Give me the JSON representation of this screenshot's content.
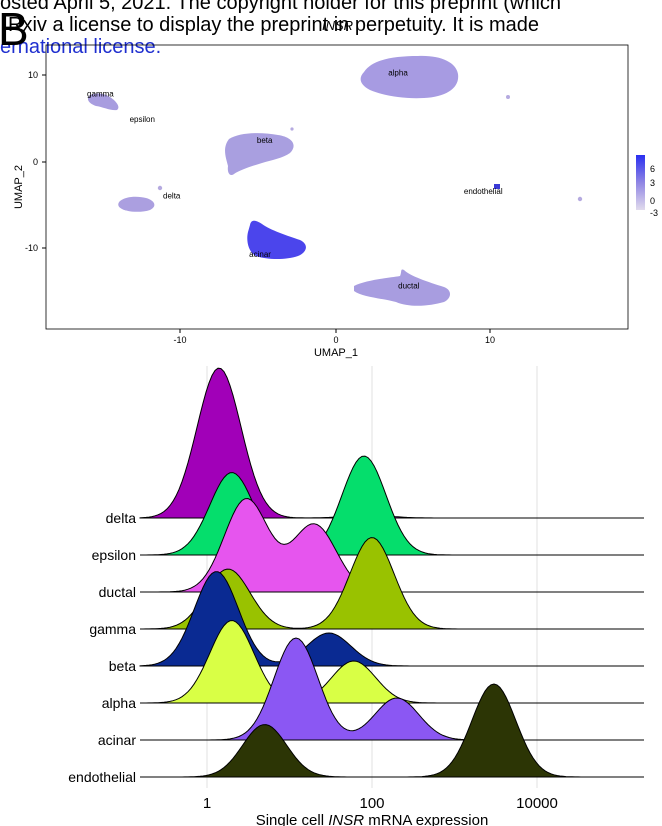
{
  "header": {
    "line1": "osted April 5, 2021. The copyright holder for this preprint (which",
    "line2": "Rxiv a license to display the preprint in perpetuity. It is made",
    "line3": "ernational license.",
    "panel_label": "B"
  },
  "umap": {
    "title": "INSR",
    "xlabel": "UMAP_1",
    "ylabel": "UMAP_2",
    "xticks": [
      "-10",
      "0",
      "10"
    ],
    "yticks": [
      "10",
      "0",
      "-10"
    ],
    "colorbar_ticks": [
      "6",
      "3",
      "0",
      "-3"
    ],
    "colors": {
      "low": "#d9d2ea",
      "mid": "#8f85e4",
      "high": "#2a2ff0"
    },
    "clusters": [
      {
        "label": "alpha",
        "x": 4.0,
        "y": 10.0
      },
      {
        "label": "gamma",
        "x": -15.2,
        "y": 7.6
      },
      {
        "label": "epsilon",
        "x": -12.5,
        "y": 4.6
      },
      {
        "label": "beta",
        "x": -4.6,
        "y": 2.2
      },
      {
        "label": "delta",
        "x": -10.6,
        "y": -4.2
      },
      {
        "label": "endothelial",
        "x": 9.5,
        "y": -3.7
      },
      {
        "label": "acinar",
        "x": -4.9,
        "y": -11.0
      },
      {
        "label": "ductal",
        "x": 4.7,
        "y": -14.6
      }
    ]
  },
  "chart_data": {
    "type": "area",
    "title": "",
    "xlabel": "Single cell INSR mRNA expression",
    "xlabel_parts": [
      "Single cell ",
      "INSR",
      " mRNA expression"
    ],
    "x_scale": "log10",
    "xticks": [
      "1",
      "100",
      "10000"
    ],
    "categories": [
      "delta",
      "epsilon",
      "ductal",
      "gamma",
      "beta",
      "alpha",
      "acinar",
      "endothelial"
    ],
    "series": [
      {
        "name": "delta",
        "color": "#a100b8",
        "peaks": [
          {
            "x": 1.4,
            "h": 1.0
          },
          {
            "x": 90,
            "h": 0.02
          }
        ]
      },
      {
        "name": "epsilon",
        "color": "#05de6c",
        "peaks": [
          {
            "x": 2.0,
            "h": 0.55
          },
          {
            "x": 80,
            "h": 0.66
          }
        ]
      },
      {
        "name": "ductal",
        "color": "#e655ee",
        "peaks": [
          {
            "x": 3.0,
            "h": 0.62
          },
          {
            "x": 20,
            "h": 0.45
          }
        ]
      },
      {
        "name": "gamma",
        "color": "#99c200",
        "peaks": [
          {
            "x": 1.8,
            "h": 0.4
          },
          {
            "x": 100,
            "h": 0.61
          }
        ]
      },
      {
        "name": "beta",
        "color": "#0a2a92",
        "peaks": [
          {
            "x": 1.3,
            "h": 0.63
          },
          {
            "x": 30,
            "h": 0.22
          }
        ]
      },
      {
        "name": "alpha",
        "color": "#d9ff45",
        "peaks": [
          {
            "x": 2.0,
            "h": 0.55
          },
          {
            "x": 60,
            "h": 0.28
          }
        ]
      },
      {
        "name": "acinar",
        "color": "#8b57f3",
        "peaks": [
          {
            "x": 12,
            "h": 0.68
          },
          {
            "x": 200,
            "h": 0.28
          }
        ]
      },
      {
        "name": "endothelial",
        "color": "#2c3505",
        "peaks": [
          {
            "x": 5,
            "h": 0.35
          },
          {
            "x": 3000,
            "h": 0.62
          }
        ]
      }
    ]
  }
}
